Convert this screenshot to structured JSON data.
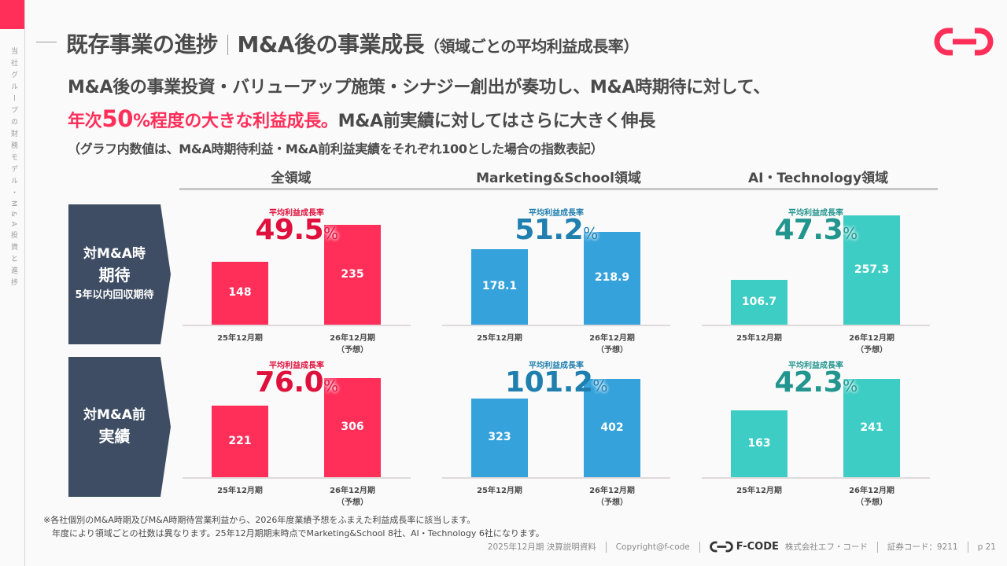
{
  "sidebar": {
    "vertical_label": "当社グループの財務モデル・M&A投資と進捗"
  },
  "header": {
    "title_main": "既存事業の進捗",
    "title_second": "M&A後の事業成長",
    "title_sub": "（領域ごとの平均利益成長率）",
    "logo": "f-code-logo-icon"
  },
  "lead": {
    "line1": "M&A後の事業投資・バリューアップ施策・シナジー創出が奏功し、M&A時期待に対して、",
    "line2_hl_a": "年次",
    "line2_hl_big": "50",
    "line2_hl_b": "%程度の大きな利益成長。",
    "line2_rest": "M&A前実績に対してはさらに大きく伸長",
    "note": "（グラフ内数値は、M&A時期待利益・M&A前利益実績をそれぞれ100とした場合の指数表記）"
  },
  "columns": [
    "全領域",
    "Marketing&School領域",
    "AI・Technology領域"
  ],
  "rows": [
    {
      "l1": "対M&A時",
      "l2": "期待",
      "l3": "5年以内回収期待"
    },
    {
      "l1": "対M&A前",
      "l2": "実績",
      "l3": ""
    }
  ],
  "colors": {
    "all": "#ff2f5a",
    "all_rate": "#e0103c",
    "ms": "#35a2dc",
    "ms_rate": "#1f7fae",
    "ai": "#3ecdc4",
    "ai_rate": "#23958f",
    "label_bg": "#3e4d63"
  },
  "chart_data": [
    {
      "type": "bar",
      "title": "全領域 / 対M&A時期待",
      "rate_label": "平均利益成長率",
      "rate": "49.5",
      "rate_unit": "%",
      "categories": [
        "25年12月期",
        "26年12月期"
      ],
      "category_notes": [
        "",
        "（予想）"
      ],
      "values": [
        148,
        235
      ],
      "ylim": [
        0,
        260
      ],
      "color": "#ff2f5a",
      "rate_color": "#e0103c"
    },
    {
      "type": "bar",
      "title": "Marketing&School領域 / 対M&A時期待",
      "rate_label": "平均利益成長率",
      "rate": "51.2",
      "rate_unit": "%",
      "categories": [
        "25年12月期",
        "26年12月期"
      ],
      "category_notes": [
        "",
        "（予想）"
      ],
      "values": [
        178.1,
        218.9
      ],
      "ylim": [
        0,
        260
      ],
      "color": "#35a2dc",
      "rate_color": "#1f7fae"
    },
    {
      "type": "bar",
      "title": "AI・Technology領域 / 対M&A時期待",
      "rate_label": "平均利益成長率",
      "rate": "47.3",
      "rate_unit": "%",
      "categories": [
        "25年12月期",
        "26年12月期"
      ],
      "category_notes": [
        "",
        "（予想）"
      ],
      "values": [
        106.7,
        257.3
      ],
      "ylim": [
        0,
        260
      ],
      "color": "#3ecdc4",
      "rate_color": "#23958f"
    },
    {
      "type": "bar",
      "title": "全領域 / 対M&A前実績",
      "rate_label": "平均利益成長率",
      "rate": "76.0",
      "rate_unit": "%",
      "categories": [
        "25年12月期",
        "26年12月期"
      ],
      "category_notes": [
        "",
        "（予想）"
      ],
      "values": [
        221,
        306
      ],
      "ylim": [
        0,
        340
      ],
      "color": "#ff2f5a",
      "rate_color": "#e0103c"
    },
    {
      "type": "bar",
      "title": "Marketing&School領域 / 対M&A前実績",
      "rate_label": "平均利益成長率",
      "rate": "101.2",
      "rate_unit": "%",
      "categories": [
        "25年12月期",
        "26年12月期"
      ],
      "category_notes": [
        "",
        "（予想）"
      ],
      "values": [
        323,
        402
      ],
      "ylim": [
        0,
        450
      ],
      "color": "#35a2dc",
      "rate_color": "#1f7fae"
    },
    {
      "type": "bar",
      "title": "AI・Technology領域 / 対M&A前実績",
      "rate_label": "平均利益成長率",
      "rate": "42.3",
      "rate_unit": "%",
      "categories": [
        "25年12月期",
        "26年12月期"
      ],
      "category_notes": [
        "",
        "（予想）"
      ],
      "values": [
        163,
        241
      ],
      "ylim": [
        0,
        270
      ],
      "color": "#3ecdc4",
      "rate_color": "#23958f"
    }
  ],
  "footnotes": [
    "※各社個別のM&A時期及びM&A時期待営業利益から、2026年度業績予想をふまえた利益成長率に該当します。",
    "　年度により領域ごとの社数は異なります。25年12月期期末時点でMarketing&School 8社、AI・Technology 6社になります。"
  ],
  "footer": {
    "doc": "2025年12月期  決算説明資料",
    "copyright": "Copyright@f-code",
    "brand": "F-CODE",
    "company": "株式会社エフ・コード",
    "code": "証券コード：9211",
    "page": "p  21"
  }
}
